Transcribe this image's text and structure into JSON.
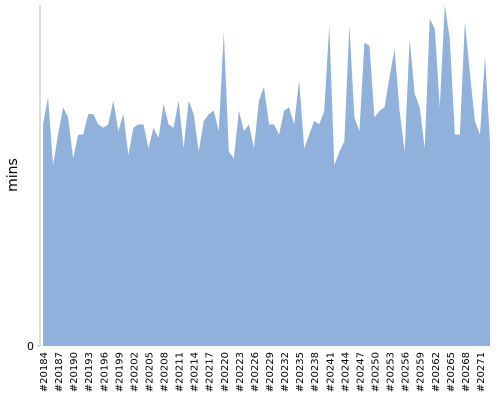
{
  "chart_data": {
    "type": "area",
    "y_label": "mins",
    "categories": [
      "#20184",
      null,
      null,
      "#20187",
      null,
      null,
      "#20190",
      null,
      null,
      "#20193",
      null,
      null,
      "#20196",
      null,
      null,
      "#20199",
      null,
      null,
      "#20202",
      null,
      null,
      "#20205",
      null,
      null,
      "#20208",
      null,
      null,
      "#20211",
      null,
      null,
      "#20214",
      null,
      null,
      "#20217",
      null,
      null,
      "#20220",
      null,
      null,
      "#20223",
      null,
      null,
      "#20226",
      null,
      null,
      "#20229",
      null,
      null,
      "#20232",
      null,
      null,
      "#20235",
      null,
      null,
      "#20238",
      null,
      null,
      "#20241",
      null,
      null,
      "#20244",
      null,
      null,
      "#20247",
      null,
      null,
      "#20250",
      null,
      null,
      "#20253",
      null,
      null,
      "#20256",
      null,
      null,
      "#20259",
      null,
      null,
      "#20262",
      null,
      null,
      "#20265",
      null,
      null,
      "#20268",
      null,
      null,
      "#20271",
      null,
      null
    ],
    "values": [
      65,
      73,
      53,
      62,
      70,
      67,
      55,
      62,
      62,
      68,
      68,
      65,
      64,
      65,
      72,
      63,
      68,
      56,
      64,
      65,
      65,
      58,
      64,
      61,
      71,
      65,
      64,
      72,
      58,
      72,
      68,
      57,
      66,
      68,
      69,
      63,
      92,
      57,
      55,
      69,
      63,
      65,
      58,
      72,
      76,
      65,
      65,
      62,
      69,
      70,
      65,
      78,
      58,
      62,
      66,
      65,
      69,
      94,
      53,
      57,
      60,
      94,
      67,
      63,
      89,
      88,
      67,
      69,
      70,
      79,
      87,
      69,
      57,
      90,
      74,
      70,
      58,
      96,
      93,
      70,
      100,
      90,
      62,
      62,
      95,
      80,
      66,
      62,
      85,
      60
    ],
    "color": "#8fb1dc",
    "ylim": [
      0,
      100
    ],
    "yticks": [
      0
    ]
  }
}
